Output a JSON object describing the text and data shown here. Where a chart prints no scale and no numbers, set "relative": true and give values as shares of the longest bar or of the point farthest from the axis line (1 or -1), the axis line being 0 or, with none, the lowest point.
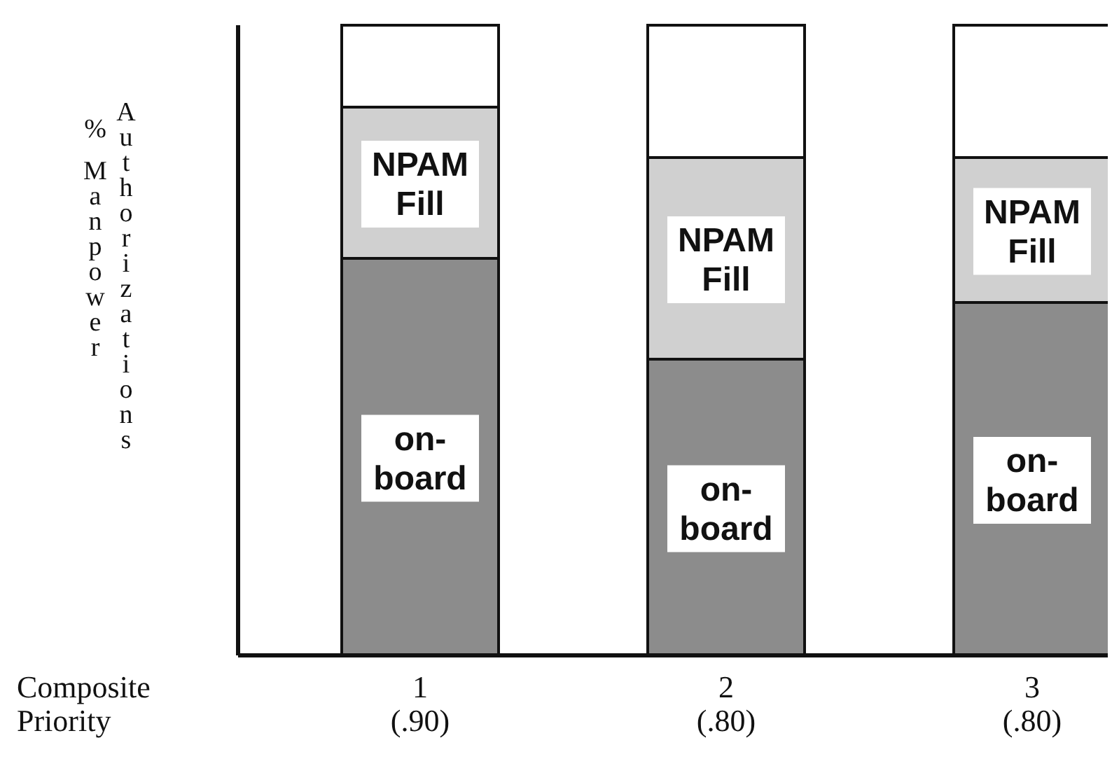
{
  "chart_data": {
    "type": "bar",
    "stacked": true,
    "relative": true,
    "legend": false,
    "xlabel": "Composite Priority",
    "ylabel": "% Manpower Authorizations",
    "categories": [
      "1 (.90)",
      "2 (.80)",
      "3 (.80)"
    ],
    "series": [
      {
        "name": "on-board",
        "color": "#8c8c8c",
        "values": [
          0.63,
          0.47,
          0.56
        ]
      },
      {
        "name": "NPAM Fill",
        "color": "#d0d0d0",
        "values": [
          0.24,
          0.32,
          0.23
        ]
      },
      {
        "color": "#ffffff",
        "values": [
          0.13,
          0.21,
          0.21
        ]
      }
    ]
  }
}
